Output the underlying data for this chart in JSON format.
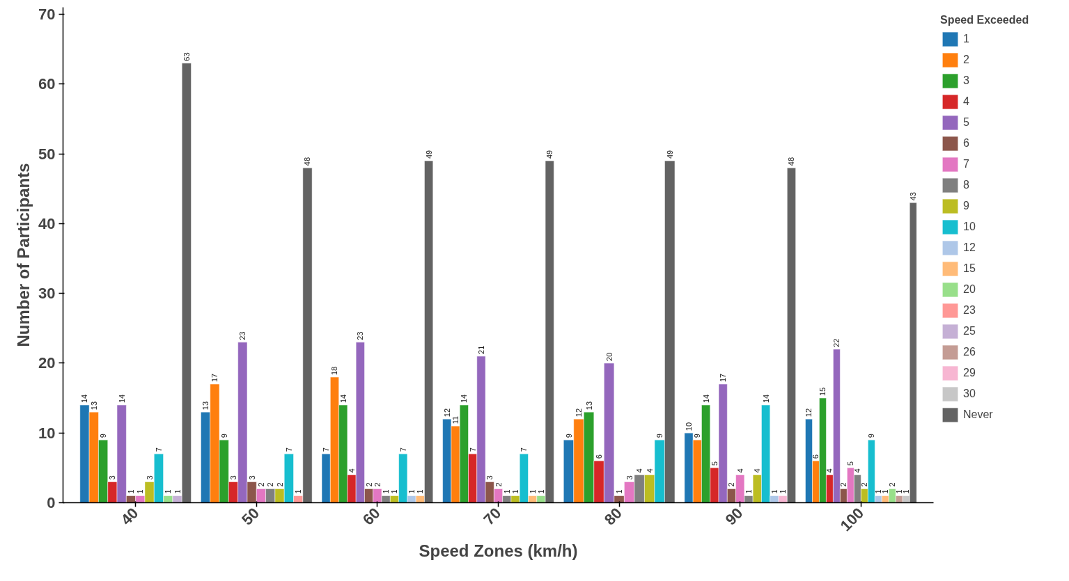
{
  "chart_data": {
    "type": "bar",
    "xlabel": "Speed Zones (km/h)",
    "ylabel": "Number of Participants",
    "legend_title": "Speed Exceeded",
    "categories": [
      "40",
      "50",
      "60",
      "70",
      "80",
      "90",
      "100"
    ],
    "series": [
      {
        "name": "1",
        "color": "#1f77b4",
        "values": [
          14,
          13,
          7,
          12,
          9,
          10,
          12
        ]
      },
      {
        "name": "2",
        "color": "#ff7f0e",
        "values": [
          13,
          17,
          18,
          11,
          12,
          9,
          6
        ]
      },
      {
        "name": "3",
        "color": "#2ca02c",
        "values": [
          9,
          9,
          14,
          14,
          13,
          14,
          15
        ]
      },
      {
        "name": "4",
        "color": "#d62728",
        "values": [
          3,
          3,
          4,
          7,
          6,
          5,
          4
        ]
      },
      {
        "name": "5",
        "color": "#9467bd",
        "values": [
          14,
          23,
          23,
          21,
          20,
          17,
          22
        ]
      },
      {
        "name": "6",
        "color": "#8c564b",
        "values": [
          1,
          3,
          2,
          3,
          1,
          2,
          2
        ]
      },
      {
        "name": "7",
        "color": "#e377c2",
        "values": [
          1,
          2,
          2,
          2,
          3,
          4,
          5
        ]
      },
      {
        "name": "8",
        "color": "#7f7f7f",
        "values": [
          null,
          2,
          1,
          1,
          4,
          1,
          4
        ]
      },
      {
        "name": "9",
        "color": "#bcbd22",
        "values": [
          3,
          2,
          1,
          1,
          4,
          4,
          2
        ]
      },
      {
        "name": "10",
        "color": "#17becf",
        "values": [
          7,
          7,
          7,
          7,
          9,
          14,
          9
        ]
      },
      {
        "name": "12",
        "color": "#aec7e8",
        "values": [
          null,
          null,
          1,
          null,
          null,
          1,
          1
        ]
      },
      {
        "name": "15",
        "color": "#ffbb78",
        "values": [
          null,
          null,
          1,
          1,
          null,
          null,
          1
        ]
      },
      {
        "name": "20",
        "color": "#98df8a",
        "values": [
          1,
          null,
          null,
          1,
          null,
          null,
          2
        ]
      },
      {
        "name": "23",
        "color": "#ff9896",
        "values": [
          null,
          1,
          null,
          null,
          null,
          null,
          null
        ]
      },
      {
        "name": "25",
        "color": "#c5b0d5",
        "values": [
          1,
          null,
          null,
          null,
          null,
          null,
          null
        ]
      },
      {
        "name": "26",
        "color": "#c49c94",
        "values": [
          null,
          null,
          null,
          null,
          null,
          null,
          1
        ]
      },
      {
        "name": "29",
        "color": "#f7b6d2",
        "values": [
          null,
          null,
          null,
          null,
          null,
          1,
          null
        ]
      },
      {
        "name": "30",
        "color": "#c7c7c7",
        "values": [
          null,
          null,
          null,
          null,
          null,
          null,
          1
        ]
      },
      {
        "name": "Never",
        "color": "#636363",
        "values": [
          63,
          48,
          49,
          49,
          49,
          48,
          43
        ]
      }
    ],
    "ylim": [
      0,
      71
    ],
    "yticks": [
      0,
      10,
      20,
      30,
      40,
      50,
      60,
      70
    ],
    "data_labels": true,
    "legend": "top right"
  }
}
